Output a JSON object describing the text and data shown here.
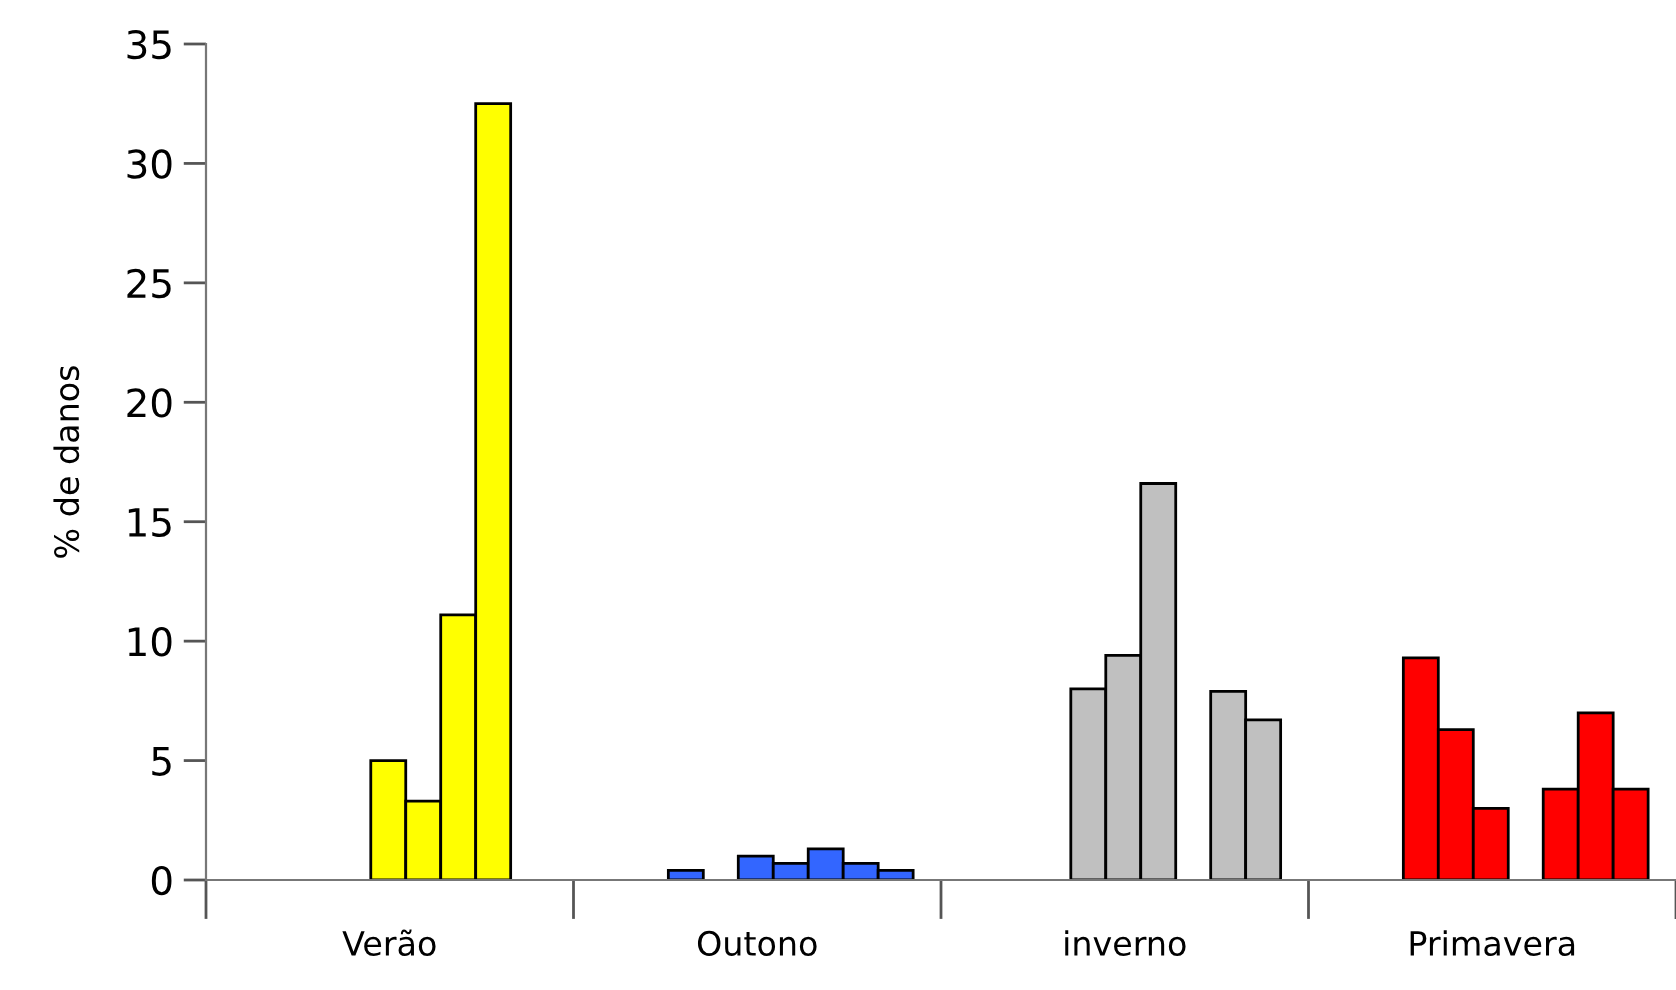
{
  "chart_data": {
    "type": "bar",
    "ylabel": "% de danos",
    "categories": [
      "Verão",
      "Outono",
      "inverno",
      "Primavera"
    ],
    "ylim": [
      0,
      35
    ],
    "yticks": [
      0,
      5,
      10,
      15,
      20,
      25,
      30,
      35
    ],
    "grid": false,
    "legend": false,
    "series": [
      {
        "colors": [
          "#ffff00",
          "#3366ff",
          "#c0c0c0",
          "#ff0000"
        ],
        "values": [
          null,
          0.4,
          null,
          9.3
        ]
      },
      {
        "colors": [
          "#ffff00",
          "#3366ff",
          "#c0c0c0",
          "#ff0000"
        ],
        "values": [
          null,
          null,
          8.0,
          6.3
        ]
      },
      {
        "colors": [
          "#ffff00",
          "#3366ff",
          "#c0c0c0",
          "#ff0000"
        ],
        "values": [
          5.0,
          1.0,
          9.4,
          3.0
        ]
      },
      {
        "colors": [
          "#ffff00",
          "#3366ff",
          "#c0c0c0",
          "#ff0000"
        ],
        "values": [
          3.3,
          0.7,
          16.6,
          null
        ]
      },
      {
        "colors": [
          "#ffff00",
          "#3366ff",
          "#c0c0c0",
          "#ff0000"
        ],
        "values": [
          11.1,
          1.3,
          null,
          3.8
        ]
      },
      {
        "colors": [
          "#ffff00",
          "#3366ff",
          "#c0c0c0",
          "#ff0000"
        ],
        "values": [
          32.5,
          0.7,
          7.9,
          7.0
        ]
      },
      {
        "colors": [
          "#ffff00",
          "#3366ff",
          "#c0c0c0",
          "#ff0000"
        ],
        "values": [
          null,
          0.4,
          6.7,
          3.8
        ]
      }
    ]
  }
}
